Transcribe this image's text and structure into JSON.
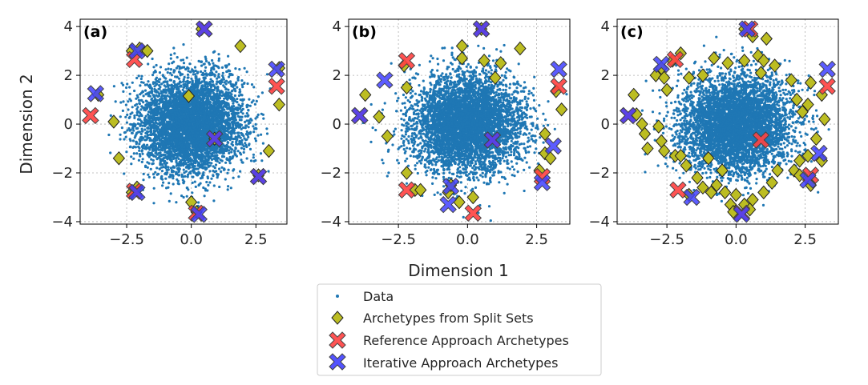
{
  "figure": {
    "xlabel": "Dimension 1",
    "ylabel": "Dimension 2"
  },
  "legend": {
    "placement": "bottom-center",
    "items": [
      {
        "label": "Data",
        "marker": "dot",
        "color": "#1f77b4"
      },
      {
        "label": "Archetypes from Split Sets",
        "marker": "diamond",
        "color": "#bcbd22"
      },
      {
        "label": "Reference Approach Archetypes",
        "marker": "x",
        "color": "#ff4040"
      },
      {
        "label": "Iterative Approach Archetypes",
        "marker": "x",
        "color": "#4040ff"
      }
    ]
  },
  "colors": {
    "data": "#1f77b4",
    "split": "#bcbd22",
    "reference": "#ff4040",
    "iterative": "#4040ff",
    "grid": "#b0b0b0"
  },
  "chart_data": [
    {
      "type": "scatter",
      "panel_label": "(a)",
      "xlim": [
        -4.3,
        3.7
      ],
      "ylim": [
        -4.1,
        4.3
      ],
      "xticks": [
        "-2.5",
        "0.0",
        "2.5"
      ],
      "xtick_values": [
        -2.5,
        0.0,
        2.5
      ],
      "yticks": [
        "-4",
        "-2",
        "0",
        "2",
        "4"
      ],
      "ytick_values": [
        -4,
        -2,
        0,
        2,
        4
      ],
      "grid": true,
      "data_distribution": {
        "kind": "gaussian-cloud",
        "center": [
          0,
          0
        ],
        "std": [
          1.0,
          1.0
        ],
        "points": 5000
      },
      "series": [
        {
          "name": "Archetypes from Split Sets",
          "points": [
            [
              -2.3,
              3.0
            ],
            [
              -2.0,
              3.1
            ],
            [
              -1.7,
              3.0
            ],
            [
              0.4,
              3.9
            ],
            [
              1.9,
              3.2
            ],
            [
              -3.6,
              1.2
            ],
            [
              -3.0,
              0.1
            ],
            [
              -2.8,
              -1.4
            ],
            [
              -0.1,
              1.15
            ],
            [
              3.4,
              2.3
            ],
            [
              3.4,
              0.8
            ],
            [
              3.0,
              -1.1
            ],
            [
              2.6,
              -2.1
            ],
            [
              -2.3,
              -2.8
            ],
            [
              -2.1,
              -2.6
            ],
            [
              0.0,
              -3.2
            ],
            [
              0.2,
              -3.6
            ],
            [
              0.9,
              -0.6
            ]
          ]
        },
        {
          "name": "Reference Approach Archetypes",
          "points": [
            [
              -2.2,
              2.65
            ],
            [
              0.5,
              3.9
            ],
            [
              3.3,
              1.55
            ],
            [
              -3.9,
              0.35
            ],
            [
              0.9,
              -0.6
            ],
            [
              2.6,
              -2.15
            ],
            [
              -2.2,
              -2.75
            ],
            [
              0.2,
              -3.65
            ]
          ]
        },
        {
          "name": "Iterative Approach Archetypes",
          "points": [
            [
              -2.1,
              3.0
            ],
            [
              0.5,
              3.9
            ],
            [
              3.3,
              2.25
            ],
            [
              -3.7,
              1.25
            ],
            [
              0.9,
              -0.6
            ],
            [
              2.6,
              -2.15
            ],
            [
              -2.1,
              -2.8
            ],
            [
              0.3,
              -3.7
            ]
          ]
        }
      ]
    },
    {
      "type": "scatter",
      "panel_label": "(b)",
      "xlim": [
        -4.3,
        3.7
      ],
      "ylim": [
        -4.1,
        4.3
      ],
      "xticks": [
        "-2.5",
        "0.0",
        "2.5"
      ],
      "xtick_values": [
        -2.5,
        0.0,
        2.5
      ],
      "yticks": [
        "-4",
        "-2",
        "0",
        "2",
        "4"
      ],
      "ytick_values": [
        -4,
        -2,
        0,
        2,
        4
      ],
      "grid": true,
      "data_distribution": {
        "kind": "gaussian-cloud",
        "center": [
          0,
          0
        ],
        "std": [
          1.0,
          1.0
        ],
        "points": 5000
      },
      "series": [
        {
          "name": "Archetypes from Split Sets",
          "points": [
            [
              -0.2,
              3.2
            ],
            [
              0.5,
              3.9
            ],
            [
              -0.2,
              2.7
            ],
            [
              0.6,
              2.6
            ],
            [
              1.9,
              3.1
            ],
            [
              1.2,
              2.5
            ],
            [
              1.0,
              1.9
            ],
            [
              -2.3,
              2.4
            ],
            [
              -2.2,
              1.5
            ],
            [
              -3.7,
              1.2
            ],
            [
              -3.2,
              0.3
            ],
            [
              -2.9,
              -0.5
            ],
            [
              3.2,
              1.35
            ],
            [
              3.4,
              0.6
            ],
            [
              2.8,
              -0.4
            ],
            [
              2.8,
              -1.2
            ],
            [
              3.0,
              -1.4
            ],
            [
              2.6,
              -1.9
            ],
            [
              -2.2,
              -2.0
            ],
            [
              -1.9,
              -2.7
            ],
            [
              -1.7,
              -2.7
            ],
            [
              -0.7,
              -2.8
            ],
            [
              0.2,
              -3.0
            ],
            [
              -0.3,
              -3.2
            ],
            [
              -0.6,
              -2.5
            ]
          ]
        },
        {
          "name": "Reference Approach Archetypes",
          "points": [
            [
              -2.2,
              2.6
            ],
            [
              0.5,
              3.9
            ],
            [
              3.3,
              1.55
            ],
            [
              -3.9,
              0.35
            ],
            [
              0.9,
              -0.65
            ],
            [
              2.7,
              -2.15
            ],
            [
              -2.2,
              -2.7
            ],
            [
              0.2,
              -3.65
            ]
          ]
        },
        {
          "name": "Iterative Approach Archetypes",
          "points": [
            [
              -3.0,
              1.8
            ],
            [
              0.5,
              3.9
            ],
            [
              3.3,
              2.25
            ],
            [
              -3.9,
              0.35
            ],
            [
              0.9,
              -0.65
            ],
            [
              3.1,
              -0.9
            ],
            [
              2.7,
              -2.4
            ],
            [
              -0.7,
              -3.3
            ],
            [
              -0.6,
              -2.55
            ]
          ]
        }
      ]
    },
    {
      "type": "scatter",
      "panel_label": "(c)",
      "xlim": [
        -4.3,
        3.7
      ],
      "ylim": [
        -4.1,
        4.3
      ],
      "xticks": [
        "-2.5",
        "0.0",
        "2.5"
      ],
      "xtick_values": [
        -2.5,
        0.0,
        2.5
      ],
      "yticks": [
        "-4",
        "-2",
        "0",
        "2",
        "4"
      ],
      "ytick_values": [
        -4,
        -2,
        0,
        2,
        4
      ],
      "grid": true,
      "data_distribution": {
        "kind": "gaussian-cloud",
        "center": [
          0,
          0
        ],
        "std": [
          1.0,
          1.0
        ],
        "points": 5000
      },
      "series": [
        {
          "name": "Archetypes from Split Sets",
          "points": [
            [
              -3.7,
              1.2
            ],
            [
              -3.6,
              0.4
            ],
            [
              -3.4,
              0.0
            ],
            [
              -3.3,
              -0.4
            ],
            [
              -3.2,
              -1.0
            ],
            [
              -2.9,
              2.0
            ],
            [
              -2.7,
              2.3
            ],
            [
              -2.6,
              1.9
            ],
            [
              -2.5,
              1.4
            ],
            [
              -2.3,
              2.6
            ],
            [
              -2.0,
              2.9
            ],
            [
              -1.7,
              1.9
            ],
            [
              -2.8,
              -0.1
            ],
            [
              -2.7,
              -0.7
            ],
            [
              -2.6,
              -1.1
            ],
            [
              -2.2,
              -1.3
            ],
            [
              -2.0,
              -1.3
            ],
            [
              -1.8,
              -1.7
            ],
            [
              -1.4,
              -2.2
            ],
            [
              -1.2,
              -2.6
            ],
            [
              -0.9,
              -2.8
            ],
            [
              -0.7,
              -2.5
            ],
            [
              -0.4,
              -2.8
            ],
            [
              -0.2,
              -3.3
            ],
            [
              0.0,
              -2.9
            ],
            [
              -0.5,
              -1.9
            ],
            [
              -1.0,
              -1.4
            ],
            [
              -1.2,
              2.0
            ],
            [
              -0.8,
              2.7
            ],
            [
              -0.3,
              2.5
            ],
            [
              0.3,
              2.6
            ],
            [
              0.6,
              3.6
            ],
            [
              0.8,
              2.8
            ],
            [
              1.0,
              2.6
            ],
            [
              1.1,
              3.5
            ],
            [
              0.9,
              2.1
            ],
            [
              1.4,
              2.4
            ],
            [
              0.3,
              3.9
            ],
            [
              2.0,
              1.8
            ],
            [
              2.2,
              1.0
            ],
            [
              2.4,
              0.5
            ],
            [
              2.6,
              0.8
            ],
            [
              2.7,
              1.7
            ],
            [
              3.1,
              1.2
            ],
            [
              3.2,
              0.2
            ],
            [
              2.9,
              -0.6
            ],
            [
              2.6,
              -1.3
            ],
            [
              2.3,
              -1.5
            ],
            [
              2.1,
              -1.9
            ],
            [
              2.3,
              -2.1
            ],
            [
              2.7,
              -2.5
            ],
            [
              3.1,
              -1.5
            ],
            [
              1.3,
              -2.4
            ],
            [
              1.0,
              -2.8
            ],
            [
              1.5,
              -1.9
            ],
            [
              0.6,
              -3.1
            ],
            [
              0.3,
              -3.3
            ],
            [
              -0.1,
              -3.6
            ],
            [
              0.5,
              -3.5
            ],
            [
              -1.7,
              -2.9
            ]
          ]
        },
        {
          "name": "Reference Approach Archetypes",
          "points": [
            [
              -2.2,
              2.65
            ],
            [
              0.5,
              3.9
            ],
            [
              3.3,
              1.55
            ],
            [
              -3.9,
              0.35
            ],
            [
              0.9,
              -0.65
            ],
            [
              2.7,
              -2.1
            ],
            [
              -2.1,
              -2.7
            ],
            [
              0.2,
              -3.65
            ]
          ]
        },
        {
          "name": "Iterative Approach Archetypes",
          "points": [
            [
              -2.7,
              2.45
            ],
            [
              0.4,
              3.9
            ],
            [
              3.3,
              2.25
            ],
            [
              -3.9,
              0.35
            ],
            [
              3.0,
              -1.2
            ],
            [
              2.6,
              -2.3
            ],
            [
              -1.6,
              -3.0
            ],
            [
              0.2,
              -3.7
            ]
          ]
        }
      ]
    }
  ]
}
